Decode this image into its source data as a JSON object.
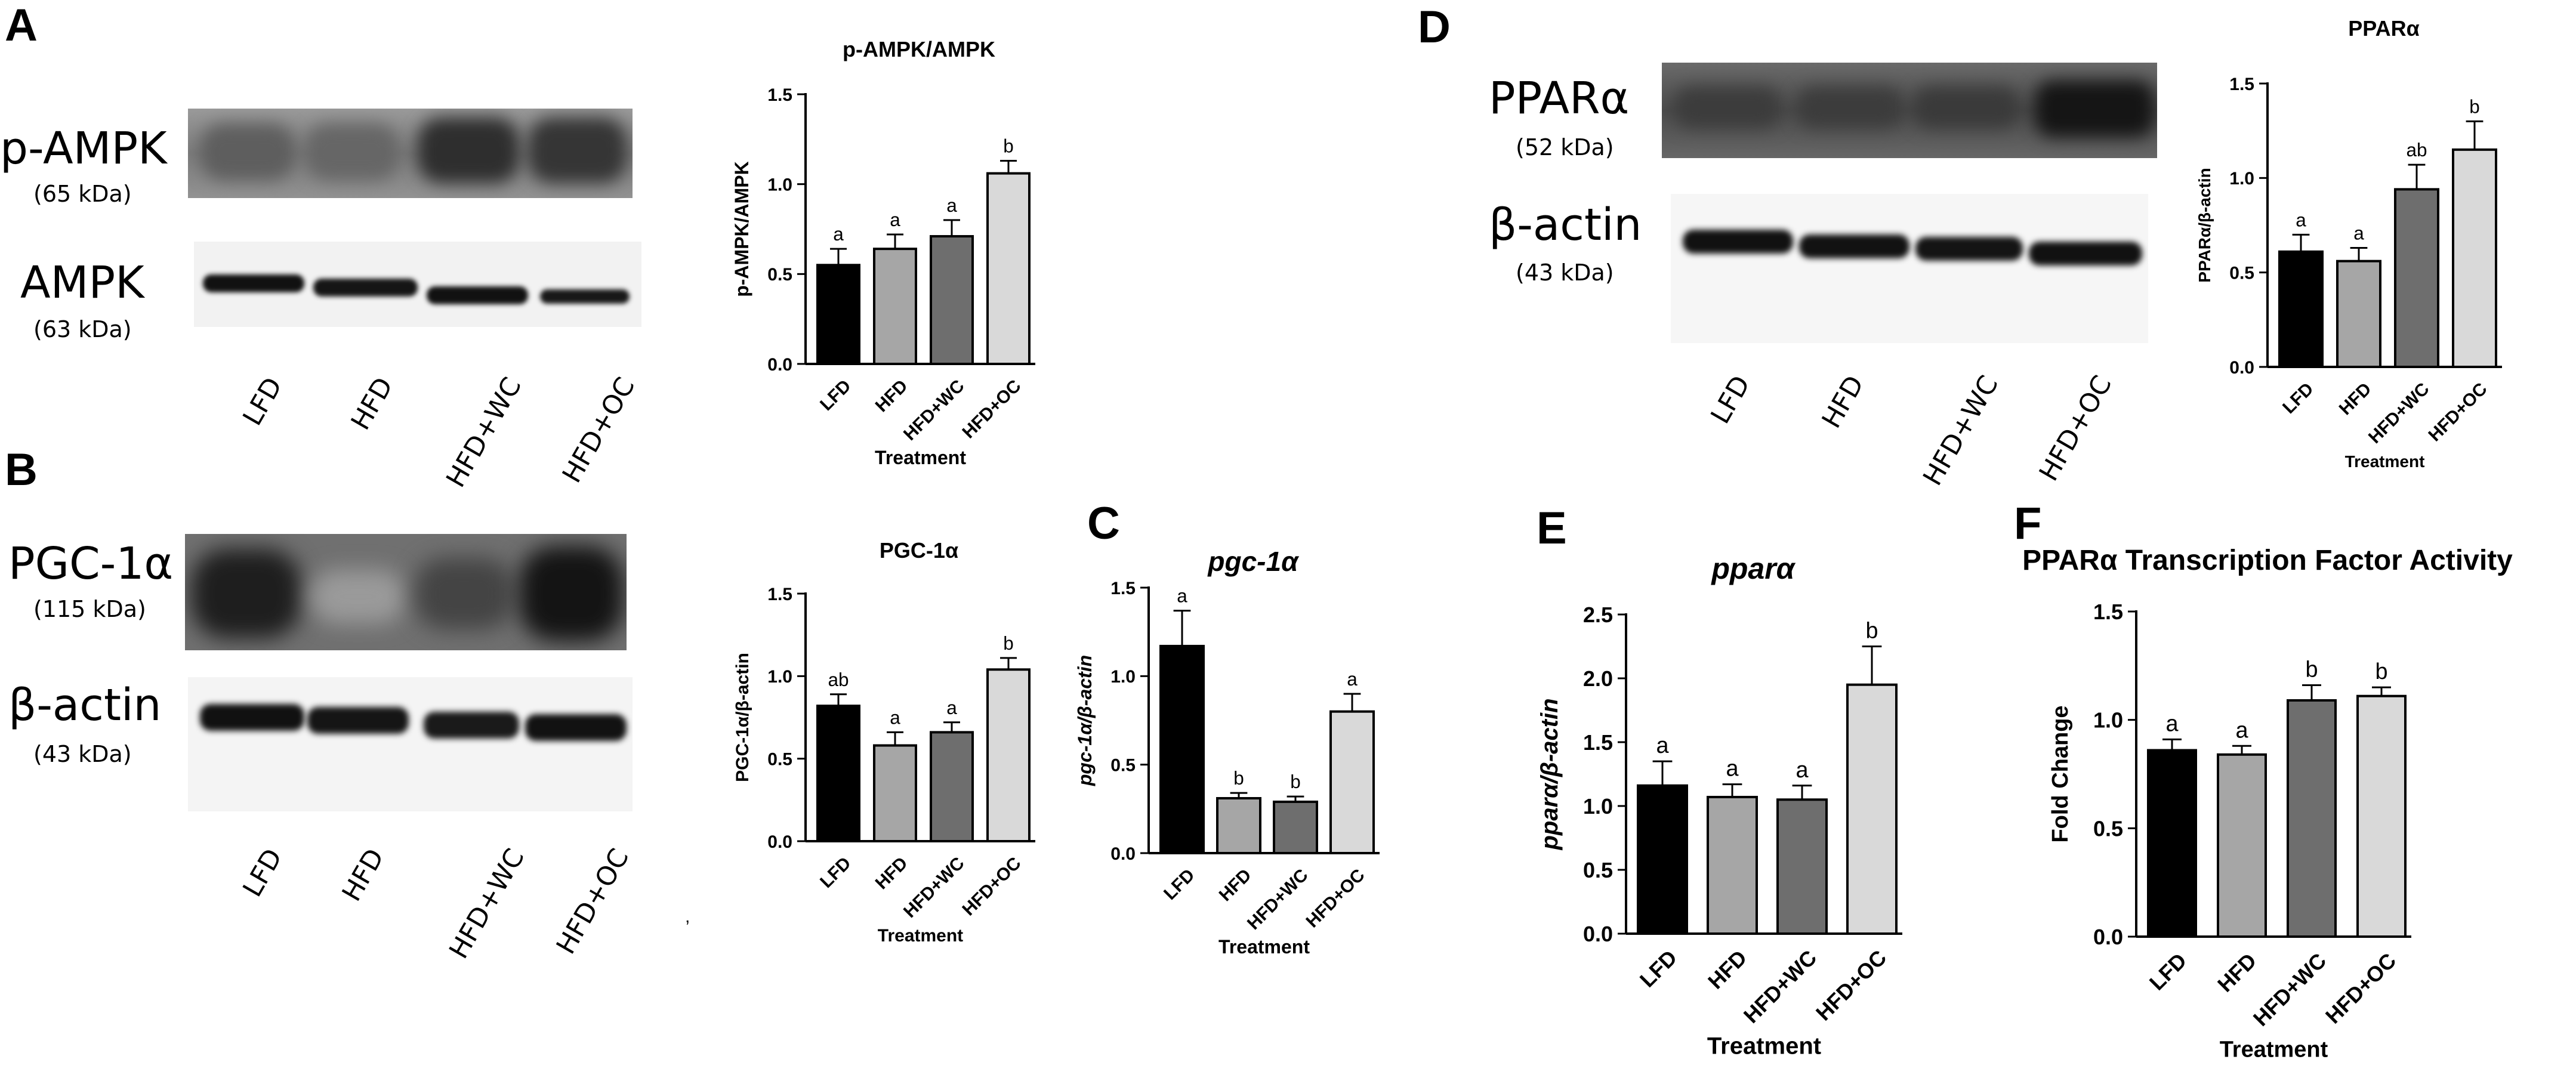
{
  "panels": {
    "A": {
      "letter": "A",
      "blot_top": {
        "label": "p-AMPK",
        "kda": "(65 kDa)"
      },
      "blot_bottom": {
        "label": "AMPK",
        "kda": "(63 kDa)"
      },
      "lanes": [
        "LFD",
        "HFD",
        "HFD+WC",
        "HFD+OC"
      ]
    },
    "B": {
      "letter": "B",
      "blot_top": {
        "label": "PGC-1α",
        "kda": "(115 kDa)"
      },
      "blot_bottom": {
        "label": "β-actin",
        "kda": "(43 kDa)"
      },
      "lanes": [
        "LFD",
        "HFD",
        "HFD+WC",
        "HFD+OC"
      ]
    },
    "C": {
      "letter": "C"
    },
    "D": {
      "letter": "D",
      "blot_top": {
        "label": "PPARα",
        "kda": "(52 kDa)"
      },
      "blot_bottom": {
        "label": "β-actin",
        "kda": "(43 kDa)"
      },
      "lanes": [
        "LFD",
        "HFD",
        "HFD+WC",
        "HFD+OC"
      ]
    },
    "E": {
      "letter": "E"
    },
    "F": {
      "letter": "F"
    }
  },
  "colors": {
    "LFD": "#000000",
    "HFD": "#a6a6a6",
    "HFD+WC": "#6e6e6e",
    "HFD+OC": "#d9d9d9"
  },
  "chart_data": [
    {
      "id": "A",
      "type": "bar",
      "title": "p-AMPK/AMPK",
      "ylabel": "p-AMPK/AMPK",
      "xlabel": "Treatment",
      "categories": [
        "LFD",
        "HFD",
        "HFD+WC",
        "HFD+OC"
      ],
      "values": [
        0.55,
        0.64,
        0.71,
        1.06
      ],
      "errors": [
        0.09,
        0.08,
        0.09,
        0.07
      ],
      "letters": [
        "a",
        "a",
        "a",
        "b"
      ],
      "ylim": [
        0,
        1.5
      ],
      "yticks": [
        "0.0",
        "0.5",
        "1.0",
        "1.5"
      ]
    },
    {
      "id": "B",
      "type": "bar",
      "title": "PGC-1α",
      "ylabel": "PGC-1α/β-actin",
      "xlabel": "Treatment",
      "categories": [
        "LFD",
        "HFD",
        "HFD+WC",
        "HFD+OC"
      ],
      "values": [
        0.82,
        0.58,
        0.66,
        1.04
      ],
      "errors": [
        0.07,
        0.08,
        0.06,
        0.07
      ],
      "letters": [
        "ab",
        "a",
        "a",
        "b"
      ],
      "ylim": [
        0,
        1.5
      ],
      "yticks": [
        "0.0",
        "0.5",
        "1.0",
        "1.5"
      ]
    },
    {
      "id": "C",
      "type": "bar",
      "title": "pgc-1α",
      "ylabel": "pgc-1α/β-actin",
      "xlabel": "Treatment",
      "categories": [
        "LFD",
        "HFD",
        "HFD+WC",
        "HFD+OC"
      ],
      "values": [
        1.17,
        0.31,
        0.29,
        0.8
      ],
      "errors": [
        0.2,
        0.03,
        0.03,
        0.1
      ],
      "letters": [
        "a",
        "b",
        "b",
        "a"
      ],
      "ylim": [
        0,
        1.5
      ],
      "yticks": [
        "0.0",
        "0.5",
        "1.0",
        "1.5"
      ]
    },
    {
      "id": "D",
      "type": "bar",
      "title": "PPARα",
      "ylabel": "PPARα/β-actin",
      "xlabel": "Treatment",
      "categories": [
        "LFD",
        "HFD",
        "HFD+WC",
        "HFD+OC"
      ],
      "values": [
        0.61,
        0.56,
        0.94,
        1.15
      ],
      "errors": [
        0.09,
        0.07,
        0.13,
        0.15
      ],
      "letters": [
        "a",
        "a",
        "ab",
        "b"
      ],
      "ylim": [
        0,
        1.5
      ],
      "yticks": [
        "0.0",
        "0.5",
        "1.0",
        "1.5"
      ]
    },
    {
      "id": "E",
      "type": "bar",
      "title": "pparα",
      "ylabel": "pparα/β-actin",
      "xlabel": "Treatment",
      "categories": [
        "LFD",
        "HFD",
        "HFD+WC",
        "HFD+OC"
      ],
      "values": [
        1.16,
        1.07,
        1.05,
        1.95
      ],
      "errors": [
        0.19,
        0.1,
        0.11,
        0.3
      ],
      "letters": [
        "a",
        "a",
        "a",
        "b"
      ],
      "ylim": [
        0,
        2.5
      ],
      "yticks": [
        "0.0",
        "0.5",
        "1.0",
        "1.5",
        "2.0",
        "2.5"
      ]
    },
    {
      "id": "F",
      "type": "bar",
      "title": "PPARα Transcription Factor Activity",
      "ylabel": "Fold Change",
      "xlabel": "Treatment",
      "categories": [
        "LFD",
        "HFD",
        "HFD+WC",
        "HFD+OC"
      ],
      "values": [
        0.86,
        0.84,
        1.09,
        1.11
      ],
      "errors": [
        0.05,
        0.04,
        0.07,
        0.04
      ],
      "letters": [
        "a",
        "a",
        "b",
        "b"
      ],
      "ylim": [
        0,
        1.5
      ],
      "yticks": [
        "0.0",
        "0.5",
        "1.0",
        "1.5"
      ]
    }
  ]
}
